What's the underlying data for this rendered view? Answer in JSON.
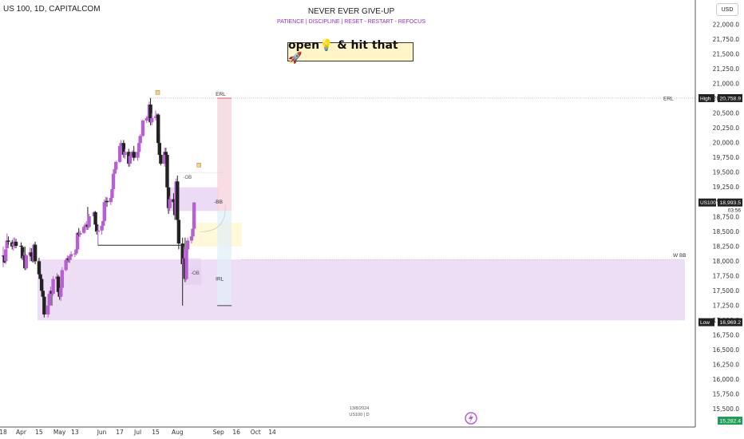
{
  "header": {
    "symbol": "US 100, 1D, CAPITALCOM",
    "currency_button": "USD"
  },
  "watermark": {
    "title": "NEVER EVER GIVE-UP",
    "subtitle": "PATIENCE  |  DISCIPLINE  |  RESET - RESTART - REFOCUS",
    "banner": "open💡 & hit that 🚀",
    "small_line1": "13/8/2024",
    "small_line2": "US100 | D"
  },
  "chart_data": {
    "type": "candlestick",
    "title": "US 100, 1D, CAPITALCOM",
    "ylim": [
      15250,
      22250
    ],
    "y_ticks": [
      22000,
      21750,
      21500,
      21250,
      21000,
      20750,
      20500,
      20250,
      20000,
      19750,
      19500,
      19250,
      19000,
      18750,
      18500,
      18250,
      18000,
      17750,
      17500,
      17250,
      17000,
      16750,
      16500,
      16250,
      16000,
      15750,
      15500
    ],
    "y_tick_labels": [
      "22,000.0",
      "21,750.0",
      "21,500.0",
      "21,250.0",
      "21,000.0",
      "20,750.0",
      "20,500.0",
      "20,250.0",
      "20,000.0",
      "19,750.0",
      "19,500.0",
      "19,250.0",
      "19,000.0",
      "18,750.0",
      "18,500.0",
      "18,250.0",
      "18,000.0",
      "17,750.0",
      "17,500.0",
      "17,250.0",
      "17,000.0",
      "16,750.0",
      "16,500.0",
      "16,250.0",
      "16,000.0",
      "15,750.0",
      "15,500.0"
    ],
    "x_ticks": [
      "18",
      "Apr",
      "15",
      "May",
      "13",
      "Jun",
      "17",
      "Jul",
      "15",
      "Aug",
      "Sep",
      "16",
      "Oct",
      "14"
    ],
    "x_tick_dates": [
      "2024-03-18",
      "2024-04-01",
      "2024-04-15",
      "2024-05-01",
      "2024-05-13",
      "2024-06-03",
      "2024-06-17",
      "2024-07-01",
      "2024-07-15",
      "2024-08-01",
      "2024-09-02",
      "2024-09-16",
      "2024-10-01",
      "2024-10-14"
    ],
    "candles": [
      {
        "d": "2024-03-18",
        "o": 18080,
        "h": 18250,
        "l": 17900,
        "c": 18100
      },
      {
        "d": "2024-03-19",
        "o": 18100,
        "h": 18180,
        "l": 17970,
        "c": 17980
      },
      {
        "d": "2024-03-20",
        "o": 18000,
        "h": 18280,
        "l": 17950,
        "c": 18200
      },
      {
        "d": "2024-03-21",
        "o": 18220,
        "h": 18470,
        "l": 18150,
        "c": 18350
      },
      {
        "d": "2024-03-22",
        "o": 18350,
        "h": 18420,
        "l": 18280,
        "c": 18330
      },
      {
        "d": "2024-03-25",
        "o": 18320,
        "h": 18360,
        "l": 18200,
        "c": 18250
      },
      {
        "d": "2024-03-26",
        "o": 18260,
        "h": 18400,
        "l": 18180,
        "c": 18300
      },
      {
        "d": "2024-03-27",
        "o": 18310,
        "h": 18400,
        "l": 18220,
        "c": 18330
      },
      {
        "d": "2024-03-28",
        "o": 18330,
        "h": 18380,
        "l": 18220,
        "c": 18260
      },
      {
        "d": "2024-04-01",
        "o": 18260,
        "h": 18320,
        "l": 18150,
        "c": 18250
      },
      {
        "d": "2024-04-02",
        "o": 18240,
        "h": 18270,
        "l": 18020,
        "c": 18050
      },
      {
        "d": "2024-04-03",
        "o": 18050,
        "h": 18150,
        "l": 18000,
        "c": 18090
      },
      {
        "d": "2024-04-04",
        "o": 18100,
        "h": 18250,
        "l": 17850,
        "c": 17880
      },
      {
        "d": "2024-04-05",
        "o": 17880,
        "h": 18120,
        "l": 17850,
        "c": 18100
      },
      {
        "d": "2024-04-08",
        "o": 18100,
        "h": 18230,
        "l": 18000,
        "c": 18150
      },
      {
        "d": "2024-04-09",
        "o": 18150,
        "h": 18220,
        "l": 18040,
        "c": 18080
      },
      {
        "d": "2024-04-10",
        "o": 18080,
        "h": 18100,
        "l": 17980,
        "c": 18000
      },
      {
        "d": "2024-04-11",
        "o": 18000,
        "h": 18300,
        "l": 17980,
        "c": 18280
      },
      {
        "d": "2024-04-12",
        "o": 18280,
        "h": 18330,
        "l": 17950,
        "c": 18000
      },
      {
        "d": "2024-04-15",
        "o": 18000,
        "h": 18060,
        "l": 17750,
        "c": 17780
      },
      {
        "d": "2024-04-16",
        "o": 17780,
        "h": 17850,
        "l": 17650,
        "c": 17700
      },
      {
        "d": "2024-04-17",
        "o": 17700,
        "h": 17760,
        "l": 17470,
        "c": 17500
      },
      {
        "d": "2024-04-18",
        "o": 17500,
        "h": 17560,
        "l": 17350,
        "c": 17400
      },
      {
        "d": "2024-04-19",
        "o": 17400,
        "h": 17450,
        "l": 17050,
        "c": 17100
      },
      {
        "d": "2024-04-22",
        "o": 17100,
        "h": 17350,
        "l": 17050,
        "c": 17250
      },
      {
        "d": "2024-04-23",
        "o": 17250,
        "h": 17500,
        "l": 17220,
        "c": 17450
      },
      {
        "d": "2024-04-24",
        "o": 17450,
        "h": 17570,
        "l": 17400,
        "c": 17500
      },
      {
        "d": "2024-04-25",
        "o": 17500,
        "h": 17580,
        "l": 17250,
        "c": 17450
      },
      {
        "d": "2024-04-26",
        "o": 17450,
        "h": 17750,
        "l": 17420,
        "c": 17700
      },
      {
        "d": "2024-04-29",
        "o": 17700,
        "h": 17800,
        "l": 17650,
        "c": 17740
      },
      {
        "d": "2024-04-30",
        "o": 17740,
        "h": 17770,
        "l": 17450,
        "c": 17480
      },
      {
        "d": "2024-05-01",
        "o": 17480,
        "h": 17600,
        "l": 17350,
        "c": 17400
      },
      {
        "d": "2024-05-02",
        "o": 17400,
        "h": 17580,
        "l": 17330,
        "c": 17550
      },
      {
        "d": "2024-05-03",
        "o": 17550,
        "h": 17900,
        "l": 17520,
        "c": 17850
      },
      {
        "d": "2024-05-06",
        "o": 17850,
        "h": 18050,
        "l": 17830,
        "c": 18020
      },
      {
        "d": "2024-05-07",
        "o": 18020,
        "h": 18100,
        "l": 17980,
        "c": 18050
      },
      {
        "d": "2024-05-08",
        "o": 18050,
        "h": 18090,
        "l": 17980,
        "c": 18020
      },
      {
        "d": "2024-05-09",
        "o": 18020,
        "h": 18100,
        "l": 17970,
        "c": 18080
      },
      {
        "d": "2024-05-10",
        "o": 18080,
        "h": 18170,
        "l": 18030,
        "c": 18120
      },
      {
        "d": "2024-05-13",
        "o": 18120,
        "h": 18180,
        "l": 18070,
        "c": 18130
      },
      {
        "d": "2024-05-14",
        "o": 18130,
        "h": 18220,
        "l": 18100,
        "c": 18200
      },
      {
        "d": "2024-05-15",
        "o": 18200,
        "h": 18500,
        "l": 18180,
        "c": 18480
      },
      {
        "d": "2024-05-16",
        "o": 18480,
        "h": 18560,
        "l": 18420,
        "c": 18450
      },
      {
        "d": "2024-05-17",
        "o": 18450,
        "h": 18520,
        "l": 18410,
        "c": 18480
      },
      {
        "d": "2024-05-20",
        "o": 18480,
        "h": 18620,
        "l": 18460,
        "c": 18580
      },
      {
        "d": "2024-05-21",
        "o": 18580,
        "h": 18650,
        "l": 18520,
        "c": 18600
      },
      {
        "d": "2024-05-22",
        "o": 18600,
        "h": 18680,
        "l": 18530,
        "c": 18620
      },
      {
        "d": "2024-05-23",
        "o": 18620,
        "h": 18920,
        "l": 18530,
        "c": 18580
      },
      {
        "d": "2024-05-24",
        "o": 18580,
        "h": 18800,
        "l": 18560,
        "c": 18760
      },
      {
        "d": "2024-05-28",
        "o": 18760,
        "h": 18850,
        "l": 18700,
        "c": 18830
      },
      {
        "d": "2024-05-29",
        "o": 18830,
        "h": 18850,
        "l": 18600,
        "c": 18620
      },
      {
        "d": "2024-05-30",
        "o": 18620,
        "h": 18650,
        "l": 18450,
        "c": 18500
      },
      {
        "d": "2024-05-31",
        "o": 18500,
        "h": 18600,
        "l": 18280,
        "c": 18520
      },
      {
        "d": "2024-06-03",
        "o": 18520,
        "h": 18640,
        "l": 18450,
        "c": 18600
      },
      {
        "d": "2024-06-04",
        "o": 18600,
        "h": 18700,
        "l": 18550,
        "c": 18680
      },
      {
        "d": "2024-06-05",
        "o": 18680,
        "h": 19050,
        "l": 18670,
        "c": 19000
      },
      {
        "d": "2024-06-06",
        "o": 19000,
        "h": 19090,
        "l": 18980,
        "c": 19020
      },
      {
        "d": "2024-06-07",
        "o": 19020,
        "h": 19080,
        "l": 18920,
        "c": 19000
      },
      {
        "d": "2024-06-10",
        "o": 19000,
        "h": 19100,
        "l": 18950,
        "c": 19070
      },
      {
        "d": "2024-06-11",
        "o": 19070,
        "h": 19250,
        "l": 19030,
        "c": 19220
      },
      {
        "d": "2024-06-12",
        "o": 19220,
        "h": 19560,
        "l": 19200,
        "c": 19480
      },
      {
        "d": "2024-06-13",
        "o": 19480,
        "h": 19600,
        "l": 19440,
        "c": 19550
      },
      {
        "d": "2024-06-14",
        "o": 19550,
        "h": 19700,
        "l": 19500,
        "c": 19680
      },
      {
        "d": "2024-06-17",
        "o": 19680,
        "h": 19980,
        "l": 19660,
        "c": 19950
      },
      {
        "d": "2024-06-18",
        "o": 19950,
        "h": 20050,
        "l": 19900,
        "c": 20000
      },
      {
        "d": "2024-06-20",
        "o": 20000,
        "h": 20050,
        "l": 19750,
        "c": 19800
      },
      {
        "d": "2024-06-21",
        "o": 19800,
        "h": 19900,
        "l": 19730,
        "c": 19850
      },
      {
        "d": "2024-06-24",
        "o": 19850,
        "h": 19900,
        "l": 19600,
        "c": 19650
      },
      {
        "d": "2024-06-25",
        "o": 19650,
        "h": 19800,
        "l": 19600,
        "c": 19780
      },
      {
        "d": "2024-06-26",
        "o": 19780,
        "h": 19850,
        "l": 19700,
        "c": 19830
      },
      {
        "d": "2024-06-27",
        "o": 19830,
        "h": 19880,
        "l": 19750,
        "c": 19850
      },
      {
        "d": "2024-06-28",
        "o": 19850,
        "h": 19950,
        "l": 19700,
        "c": 19750
      },
      {
        "d": "2024-07-01",
        "o": 19750,
        "h": 19900,
        "l": 19700,
        "c": 19850
      },
      {
        "d": "2024-07-02",
        "o": 19850,
        "h": 20050,
        "l": 19800,
        "c": 20000
      },
      {
        "d": "2024-07-03",
        "o": 20000,
        "h": 20150,
        "l": 19980,
        "c": 20120
      },
      {
        "d": "2024-07-05",
        "o": 20120,
        "h": 20400,
        "l": 20100,
        "c": 20380
      },
      {
        "d": "2024-07-08",
        "o": 20380,
        "h": 20450,
        "l": 20340,
        "c": 20420
      },
      {
        "d": "2024-07-09",
        "o": 20420,
        "h": 20480,
        "l": 20370,
        "c": 20450
      },
      {
        "d": "2024-07-10",
        "o": 20450,
        "h": 20700,
        "l": 20420,
        "c": 20650
      },
      {
        "d": "2024-07-11",
        "o": 20650,
        "h": 20760,
        "l": 20300,
        "c": 20350
      },
      {
        "d": "2024-07-12",
        "o": 20350,
        "h": 20500,
        "l": 20300,
        "c": 20420
      },
      {
        "d": "2024-07-15",
        "o": 20420,
        "h": 20550,
        "l": 20380,
        "c": 20450
      },
      {
        "d": "2024-07-16",
        "o": 20450,
        "h": 20500,
        "l": 20400,
        "c": 20480
      },
      {
        "d": "2024-07-17",
        "o": 20480,
        "h": 20500,
        "l": 19950,
        "c": 20000
      },
      {
        "d": "2024-07-18",
        "o": 20000,
        "h": 20150,
        "l": 19750,
        "c": 19800
      },
      {
        "d": "2024-07-19",
        "o": 19800,
        "h": 19880,
        "l": 19620,
        "c": 19650
      },
      {
        "d": "2024-07-22",
        "o": 19650,
        "h": 19920,
        "l": 19600,
        "c": 19850
      },
      {
        "d": "2024-07-23",
        "o": 19850,
        "h": 19920,
        "l": 19750,
        "c": 19800
      },
      {
        "d": "2024-07-24",
        "o": 19800,
        "h": 19820,
        "l": 19200,
        "c": 19250
      },
      {
        "d": "2024-07-25",
        "o": 19250,
        "h": 19400,
        "l": 18800,
        "c": 18900
      },
      {
        "d": "2024-07-26",
        "o": 18900,
        "h": 19100,
        "l": 18850,
        "c": 19050
      },
      {
        "d": "2024-07-29",
        "o": 19050,
        "h": 19150,
        "l": 18900,
        "c": 19000
      },
      {
        "d": "2024-07-30",
        "o": 19000,
        "h": 19050,
        "l": 18700,
        "c": 18780
      },
      {
        "d": "2024-07-31",
        "o": 18780,
        "h": 19400,
        "l": 18760,
        "c": 19350
      },
      {
        "d": "2024-08-01",
        "o": 19350,
        "h": 19450,
        "l": 18650,
        "c": 18700
      },
      {
        "d": "2024-08-02",
        "o": 18700,
        "h": 18800,
        "l": 18200,
        "c": 18300
      },
      {
        "d": "2024-08-05",
        "o": 18300,
        "h": 18400,
        "l": 17250,
        "c": 17950
      },
      {
        "d": "2024-08-06",
        "o": 17950,
        "h": 18250,
        "l": 17750,
        "c": 18050
      },
      {
        "d": "2024-08-07",
        "o": 18050,
        "h": 18400,
        "l": 17650,
        "c": 17700
      },
      {
        "d": "2024-08-08",
        "o": 17700,
        "h": 18250,
        "l": 17680,
        "c": 18200
      },
      {
        "d": "2024-08-09",
        "o": 18200,
        "h": 18400,
        "l": 18100,
        "c": 18350
      },
      {
        "d": "2024-08-12",
        "o": 18350,
        "h": 18480,
        "l": 18300,
        "c": 18420
      },
      {
        "d": "2024-08-13",
        "o": 18420,
        "h": 18600,
        "l": 18380,
        "c": 18550
      },
      {
        "d": "2024-08-14",
        "o": 18550,
        "h": 19000,
        "l": 18500,
        "c": 18993.5
      }
    ],
    "annotations": {
      "erl_label": "ERL",
      "wbb_label": "W BB",
      "bb_label": "-BB",
      "ob_upper_label": "-OB",
      "ob_lower_label": "-OB",
      "irl_label": "IRL",
      "high_price": 20758.9,
      "low_price": 16969.2,
      "wbb_zone": [
        17000,
        18030
      ],
      "bb_zone": [
        18850,
        19250
      ],
      "irl_target": 17250
    }
  },
  "price_axis": {
    "high_label": "High",
    "high_value": "20,758.9",
    "low_label": "Low",
    "low_value": "16,969.2",
    "current_symbol": "US100",
    "current_value": "18,993.5",
    "countdown": "03:56",
    "bottom_value": "15,282.4"
  },
  "colors": {
    "bull": "#b85fd4",
    "bear": "#222222",
    "zone": "#e7d2f1",
    "high_box": "#222222",
    "current_box": "#222222",
    "bottom_box": "#1f9e58"
  }
}
